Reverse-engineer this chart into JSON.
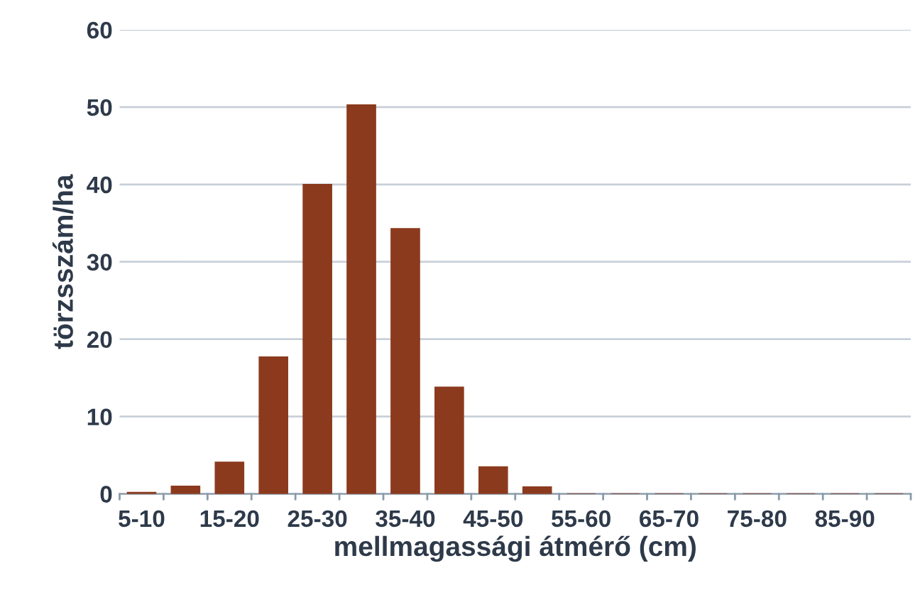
{
  "chart_data": {
    "type": "bar",
    "xlabel": "mellmagassági átmérő (cm)",
    "ylabel": "törzsszám/ha",
    "categories": [
      "5-10",
      null,
      "15-20",
      null,
      "25-30",
      null,
      "35-40",
      null,
      "45-50",
      null,
      "55-60",
      null,
      "65-70",
      null,
      "75-80",
      null,
      "85-90",
      null
    ],
    "values": [
      0.2,
      1,
      4.1,
      17.7,
      40,
      50.3,
      34.3,
      13.8,
      3.5,
      0.9,
      0,
      0,
      0,
      0,
      0,
      0,
      0,
      0
    ],
    "color": "#8b3a1e",
    "ylim": [
      0,
      60
    ],
    "yticks": [
      0,
      10,
      20,
      30,
      40,
      50,
      60
    ],
    "grid": "y",
    "legend": false
  }
}
